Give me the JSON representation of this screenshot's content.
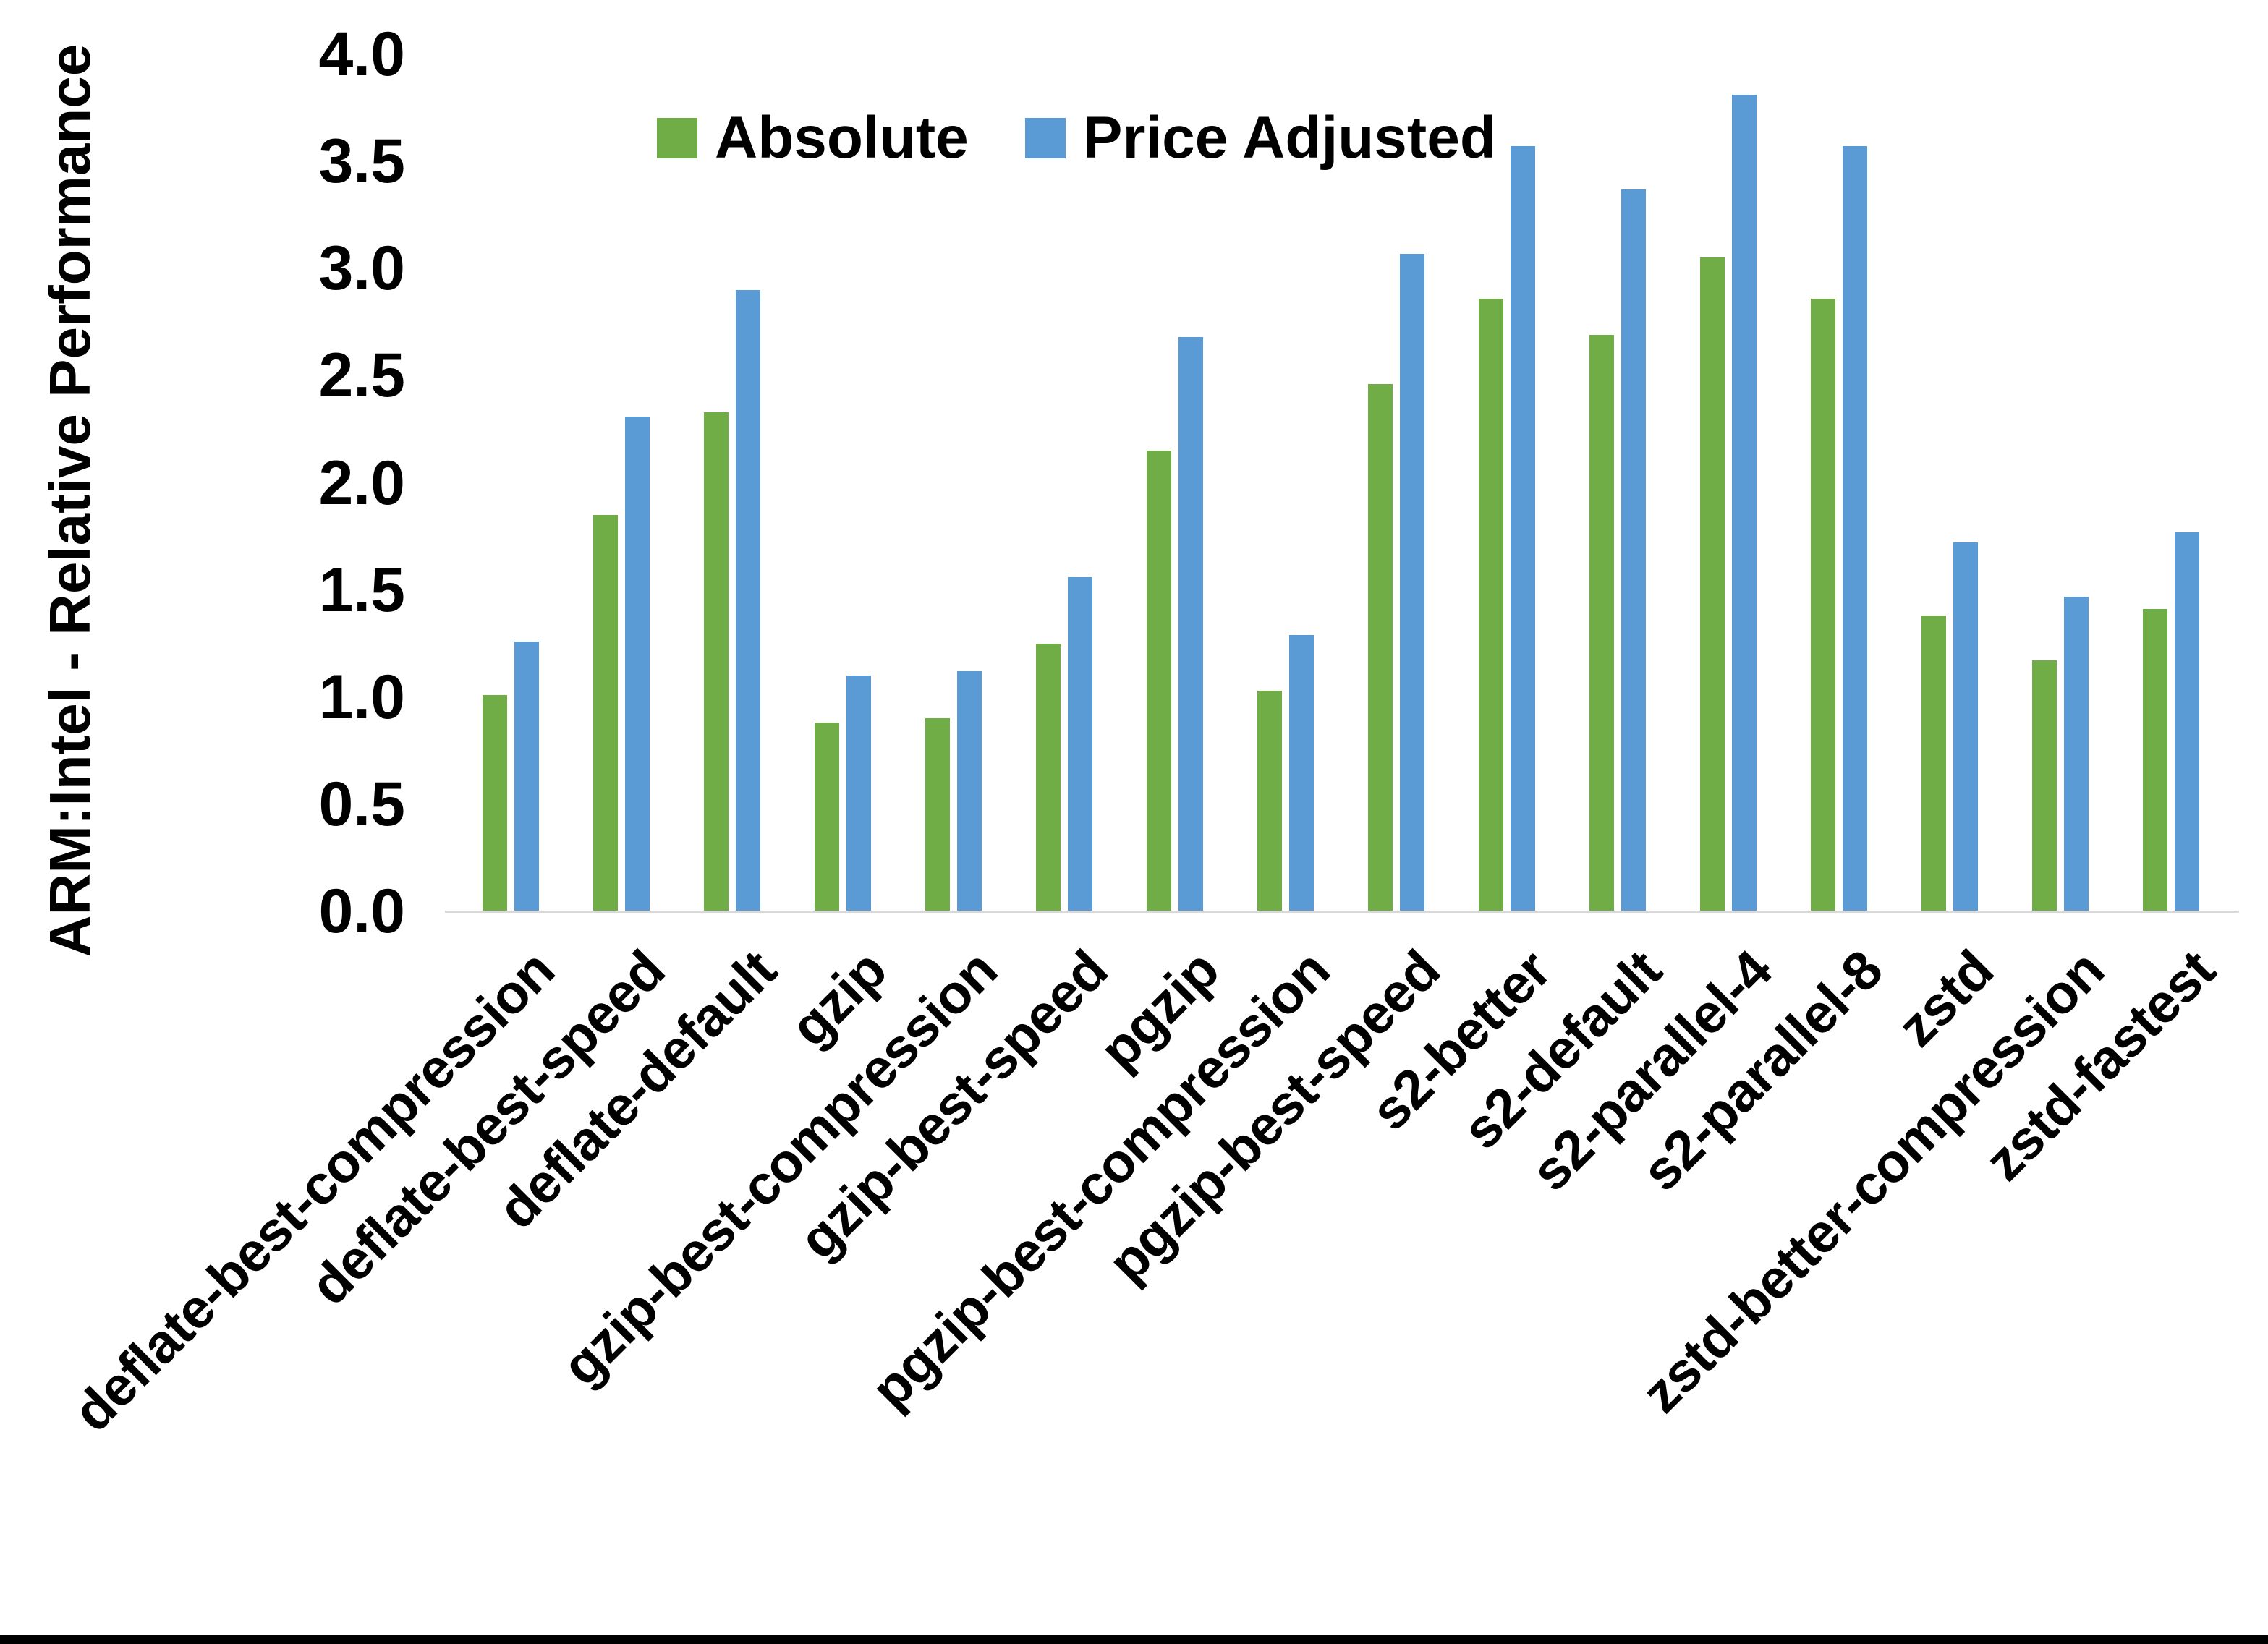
{
  "chart_data": {
    "type": "bar",
    "title": "",
    "xlabel": "",
    "ylabel": "ARM:Intel - Relative Performance",
    "ylim": [
      0.0,
      4.0
    ],
    "ytick_step": 0.5,
    "ytick_labels": [
      "0.0",
      "0.5",
      "1.0",
      "1.5",
      "2.0",
      "2.5",
      "3.0",
      "3.5",
      "4.0"
    ],
    "grid": false,
    "legend_position": "top-center",
    "categories": [
      "deflate-best-compression",
      "deflate-best-speed",
      "deflate-default",
      "gzip",
      "gzip-best-compression",
      "gzip-best-speed",
      "pgzip",
      "pgzip-best-compression",
      "pgzip-best-speed",
      "s2-better",
      "s2-default",
      "s2-parallel-4",
      "s2-parallel-8",
      "zstd",
      "zstd-better-compression",
      "zstd-fastest"
    ],
    "series": [
      {
        "name": "Absolute",
        "color": "#70AD47",
        "values": [
          1.01,
          1.85,
          2.33,
          0.88,
          0.9,
          1.25,
          2.15,
          1.03,
          2.46,
          2.86,
          2.69,
          3.05,
          2.86,
          1.38,
          1.17,
          1.41
        ]
      },
      {
        "name": "Price Adjusted",
        "color": "#5B9BD5",
        "values": [
          1.26,
          2.31,
          2.9,
          1.1,
          1.12,
          1.56,
          2.68,
          1.29,
          3.07,
          3.57,
          3.37,
          3.81,
          3.57,
          1.72,
          1.47,
          1.77
        ]
      }
    ]
  },
  "figure": {
    "background_color": "#FFFFFF",
    "axis_line_color": "#D9D9D9",
    "text_color": "#000000",
    "bottom_border_color": "#000000"
  }
}
